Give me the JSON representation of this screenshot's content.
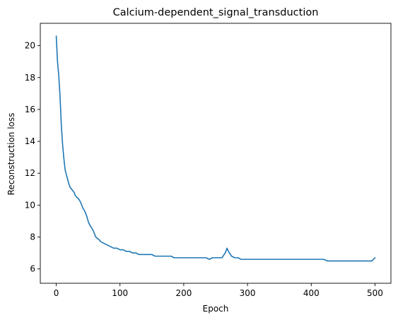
{
  "chart_data": {
    "type": "line",
    "title": "Calcium-dependent_signal_transduction",
    "xlabel": "Epoch",
    "ylabel": "Reconstruction loss",
    "xlim": [
      -25,
      525
    ],
    "ylim": [
      5.1,
      21.4
    ],
    "grid": false,
    "legend": "none",
    "x_ticks": [
      0,
      100,
      200,
      300,
      400,
      500
    ],
    "x_tick_labels": [
      "0",
      "100",
      "200",
      "300",
      "400",
      "500"
    ],
    "y_ticks": [
      6,
      8,
      10,
      12,
      14,
      16,
      18,
      20
    ],
    "y_tick_labels": [
      "6",
      "8",
      "10",
      "12",
      "14",
      "16",
      "18",
      "20"
    ],
    "series": [
      {
        "color": "#1f77b4",
        "x": [
          0,
          2,
          4,
          6,
          8,
          10,
          12,
          14,
          16,
          18,
          20,
          22,
          24,
          26,
          28,
          30,
          32,
          35,
          38,
          40,
          42,
          45,
          48,
          50,
          52,
          55,
          58,
          60,
          62,
          65,
          68,
          70,
          75,
          80,
          85,
          90,
          95,
          100,
          105,
          110,
          115,
          120,
          125,
          130,
          135,
          140,
          145,
          150,
          155,
          160,
          165,
          170,
          175,
          180,
          185,
          190,
          195,
          200,
          205,
          210,
          215,
          220,
          225,
          230,
          235,
          240,
          245,
          250,
          255,
          260,
          265,
          268,
          270,
          275,
          280,
          285,
          290,
          295,
          300,
          305,
          310,
          315,
          320,
          325,
          330,
          335,
          340,
          345,
          350,
          355,
          360,
          365,
          370,
          375,
          380,
          385,
          390,
          395,
          400,
          405,
          410,
          415,
          420,
          425,
          430,
          435,
          440,
          445,
          450,
          455,
          460,
          465,
          470,
          475,
          480,
          485,
          490,
          495,
          500
        ],
        "y": [
          20.6,
          19.0,
          18.1,
          16.8,
          15.0,
          13.8,
          12.9,
          12.2,
          11.9,
          11.6,
          11.3,
          11.1,
          11.0,
          10.9,
          10.8,
          10.6,
          10.5,
          10.4,
          10.2,
          10.0,
          9.8,
          9.6,
          9.3,
          9.0,
          8.8,
          8.6,
          8.4,
          8.2,
          8.0,
          7.9,
          7.8,
          7.7,
          7.6,
          7.5,
          7.4,
          7.3,
          7.3,
          7.2,
          7.2,
          7.1,
          7.1,
          7.0,
          7.0,
          6.9,
          6.9,
          6.9,
          6.9,
          6.9,
          6.8,
          6.8,
          6.8,
          6.8,
          6.8,
          6.8,
          6.7,
          6.7,
          6.7,
          6.7,
          6.7,
          6.7,
          6.7,
          6.7,
          6.7,
          6.7,
          6.7,
          6.6,
          6.7,
          6.7,
          6.7,
          6.7,
          7.0,
          7.3,
          7.1,
          6.8,
          6.7,
          6.7,
          6.6,
          6.6,
          6.6,
          6.6,
          6.6,
          6.6,
          6.6,
          6.6,
          6.6,
          6.6,
          6.6,
          6.6,
          6.6,
          6.6,
          6.6,
          6.6,
          6.6,
          6.6,
          6.6,
          6.6,
          6.6,
          6.6,
          6.6,
          6.6,
          6.6,
          6.6,
          6.6,
          6.5,
          6.5,
          6.5,
          6.5,
          6.5,
          6.5,
          6.5,
          6.5,
          6.5,
          6.5,
          6.5,
          6.5,
          6.5,
          6.5,
          6.5,
          6.7
        ]
      }
    ]
  }
}
